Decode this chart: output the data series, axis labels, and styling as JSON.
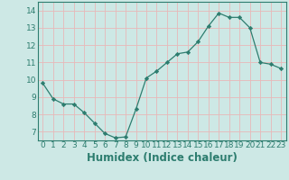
{
  "x": [
    0,
    1,
    2,
    3,
    4,
    5,
    6,
    7,
    8,
    9,
    10,
    11,
    12,
    13,
    14,
    15,
    16,
    17,
    18,
    19,
    20,
    21,
    22,
    23
  ],
  "y": [
    9.8,
    8.9,
    8.6,
    8.6,
    8.1,
    7.5,
    6.9,
    6.65,
    6.7,
    8.3,
    10.1,
    10.5,
    11.0,
    11.5,
    11.6,
    12.2,
    13.1,
    13.85,
    13.6,
    13.6,
    13.0,
    11.0,
    10.9,
    10.65
  ],
  "line_color": "#2d7d6f",
  "marker": "D",
  "marker_size": 2.2,
  "bg_color": "#cde8e5",
  "grid_color": "#b0d4d0",
  "xlabel": "Humidex (Indice chaleur)",
  "xlim": [
    -0.5,
    23.5
  ],
  "ylim": [
    6.5,
    14.5
  ],
  "yticks": [
    7,
    8,
    9,
    10,
    11,
    12,
    13,
    14
  ],
  "xticks": [
    0,
    1,
    2,
    3,
    4,
    5,
    6,
    7,
    8,
    9,
    10,
    11,
    12,
    13,
    14,
    15,
    16,
    17,
    18,
    19,
    20,
    21,
    22,
    23
  ],
  "tick_fontsize": 6.5,
  "xlabel_fontsize": 8.5,
  "tick_color": "#2d7d6f",
  "spine_color": "#2d7d6f",
  "linewidth": 0.9
}
